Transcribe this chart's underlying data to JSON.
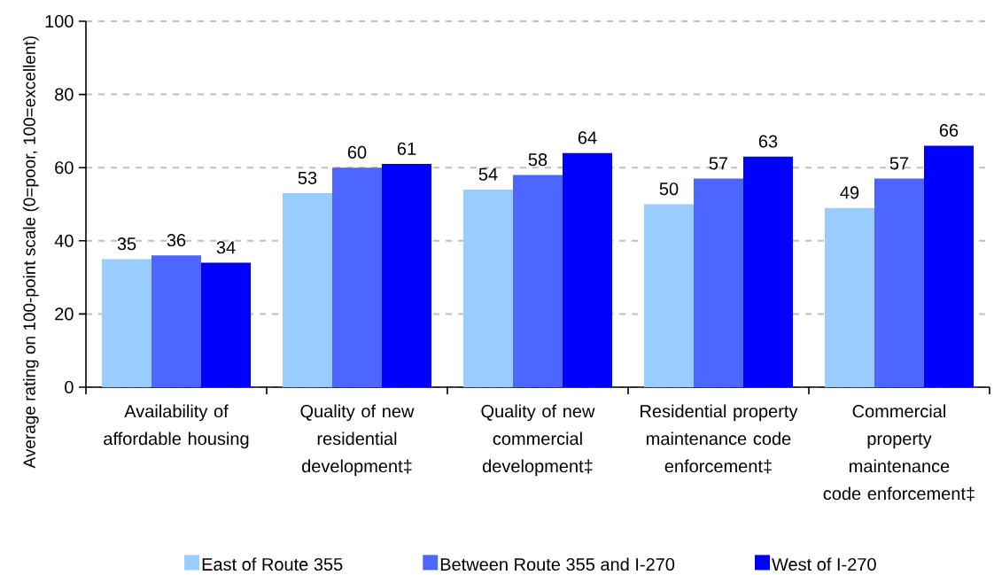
{
  "chart_data": {
    "type": "bar",
    "ylabel": "Average rating on 100-point scale (0=poor, 100=excellent)",
    "categories": [
      "Availability of affordable housing",
      "Quality of new residential development‡",
      "Quality of new commercial development‡",
      "Residential property maintenance code enforcement‡",
      "Commercial property maintenance code enforcement‡"
    ],
    "series": [
      {
        "name": "East of Route 355",
        "color": "#99ccff",
        "values": [
          35,
          53,
          54,
          50,
          49
        ]
      },
      {
        "name": "Between Route 355 and I-270",
        "color": "#4d66ff",
        "values": [
          36,
          60,
          58,
          57,
          57
        ]
      },
      {
        "name": "West of I-270",
        "color": "#0000ff",
        "values": [
          34,
          61,
          64,
          63,
          66
        ]
      }
    ],
    "ylim": [
      0,
      100
    ],
    "yticks": [
      0,
      20,
      40,
      60,
      80,
      100
    ],
    "grid": "y",
    "legend": "bottom",
    "data_labels": true
  }
}
